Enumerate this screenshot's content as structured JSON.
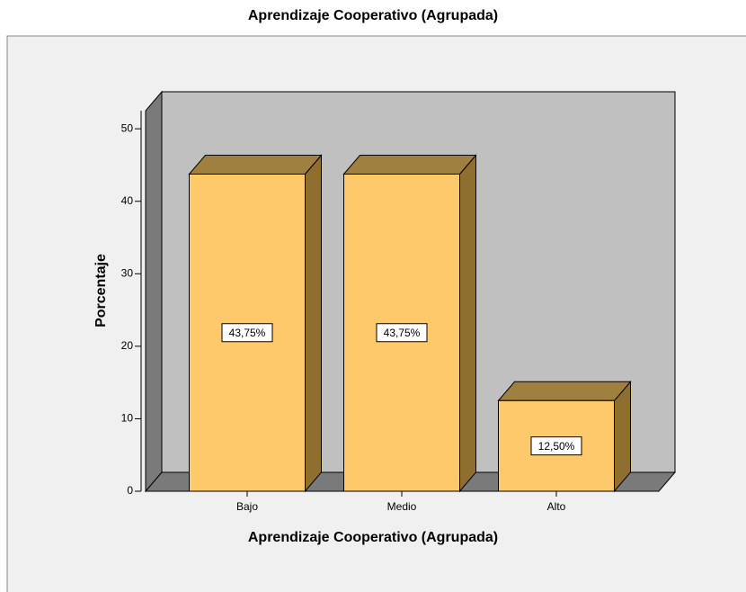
{
  "chart_data": {
    "type": "bar3d",
    "title": "Aprendizaje Cooperativo (Agrupada)",
    "x_label": "Aprendizaje Cooperativo (Agrupada)",
    "y_label": "Porcentaje",
    "categories": [
      "Bajo",
      "Medio",
      "Alto"
    ],
    "values": [
      43.75,
      43.75,
      12.5
    ],
    "value_labels": [
      "43,75%",
      "43,75%",
      "12,50%"
    ],
    "color": "#fdc96b",
    "ylim": [
      0,
      52.5
    ],
    "yticks": [
      0,
      10,
      20,
      30,
      40,
      50
    ],
    "grid": false
  }
}
